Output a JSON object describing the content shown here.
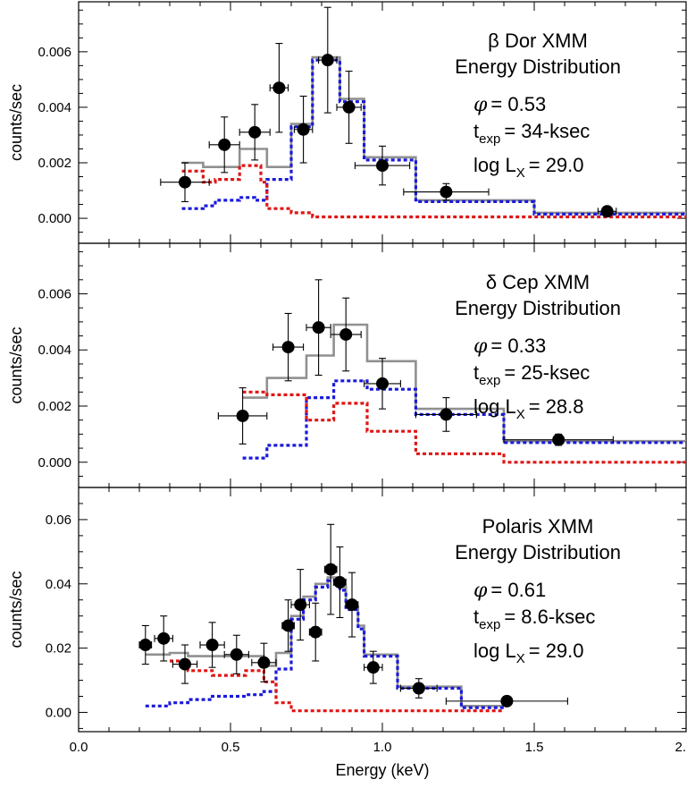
{
  "colors": {
    "total": "#909090",
    "hot": "#1a1adb",
    "cool": "#e01616",
    "data": "#000000"
  },
  "chart_data": [
    {
      "type": "line",
      "panel": "top",
      "xlim": [
        0,
        2.0
      ],
      "ylim": [
        -0.0009,
        0.0078
      ],
      "ylabel": "counts/sec",
      "yticks": [
        "0.000",
        "0.002",
        "0.004",
        "0.006"
      ],
      "ytick_values": [
        0,
        0.002,
        0.004,
        0.006
      ],
      "annotation": {
        "title1": "β Dor XMM",
        "title2": "Energy Distribution",
        "phi_symbol": "φ",
        "phi_value": "= 0.53",
        "t": "t",
        "t_sub": "exp",
        "t_value": "= 34-ksec",
        "l": "log L",
        "l_sub": "X",
        "l_value": "= 29.0"
      },
      "points": [
        {
          "x": 0.35,
          "y": 0.0013,
          "xerr": 0.08,
          "yerr": 0.0007
        },
        {
          "x": 0.48,
          "y": 0.00265,
          "xerr": 0.05,
          "yerr": 0.001
        },
        {
          "x": 0.58,
          "y": 0.0031,
          "xerr": 0.05,
          "yerr": 0.001
        },
        {
          "x": 0.66,
          "y": 0.0047,
          "xerr": 0.03,
          "yerr": 0.0016
        },
        {
          "x": 0.74,
          "y": 0.0032,
          "xerr": 0.03,
          "yerr": 0.0012
        },
        {
          "x": 0.82,
          "y": 0.0057,
          "xerr": 0.03,
          "yerr": 0.0019
        },
        {
          "x": 0.89,
          "y": 0.004,
          "xerr": 0.04,
          "yerr": 0.0013
        },
        {
          "x": 1.0,
          "y": 0.0019,
          "xerr": 0.09,
          "yerr": 0.0007
        },
        {
          "x": 1.21,
          "y": 0.00095,
          "xerr": 0.14,
          "yerr": 0.0003
        },
        {
          "x": 1.74,
          "y": 0.00025,
          "xerr": 0.03,
          "yerr": 5e-05
        }
      ],
      "series": [
        {
          "name": "",
          "role": "total",
          "x": [
            0.34,
            0.41,
            0.41,
            0.53,
            0.53,
            0.62,
            0.62,
            0.7,
            0.7,
            0.77,
            0.77,
            0.86,
            0.86,
            0.94,
            0.94,
            1.11,
            1.11,
            1.5,
            1.5,
            2.0
          ],
          "y": [
            0.002,
            0.002,
            0.00185,
            0.00185,
            0.0025,
            0.0025,
            0.00185,
            0.00185,
            0.0034,
            0.0034,
            0.0058,
            0.0058,
            0.0043,
            0.0043,
            0.0022,
            0.0022,
            0.00065,
            0.00065,
            0.0002,
            0.0002
          ]
        },
        {
          "name": "",
          "role": "hot",
          "x": [
            0.34,
            0.41,
            0.41,
            0.45,
            0.45,
            0.53,
            0.53,
            0.58,
            0.58,
            0.62,
            0.62,
            0.7,
            0.7,
            0.77,
            0.77,
            0.86,
            0.86,
            0.94,
            0.94,
            1.11,
            1.11,
            1.5,
            1.5,
            2.0
          ],
          "y": [
            0.00035,
            0.00035,
            0.00045,
            0.00045,
            0.00065,
            0.00065,
            0.00075,
            0.00075,
            0.00065,
            0.00065,
            0.0014,
            0.0014,
            0.0033,
            0.0033,
            0.0057,
            0.0057,
            0.0042,
            0.0042,
            0.0021,
            0.0021,
            0.0006,
            0.0006,
            0.00015,
            0.00015
          ]
        },
        {
          "name": "",
          "role": "cool",
          "x": [
            0.34,
            0.41,
            0.41,
            0.45,
            0.45,
            0.53,
            0.53,
            0.6,
            0.6,
            0.62,
            0.62,
            0.7,
            0.7,
            0.77,
            0.77,
            2.0
          ],
          "y": [
            0.0017,
            0.0017,
            0.0013,
            0.0013,
            0.0014,
            0.0014,
            0.0019,
            0.0019,
            0.0013,
            0.0013,
            0.00035,
            0.00035,
            0.0002,
            0.0002,
            5e-05,
            5e-05
          ]
        }
      ]
    },
    {
      "type": "line",
      "panel": "middle",
      "xlim": [
        0,
        2.0
      ],
      "ylim": [
        -0.0009,
        0.0078
      ],
      "ylabel": "counts/sec",
      "yticks": [
        "0.000",
        "0.002",
        "0.004",
        "0.006"
      ],
      "ytick_values": [
        0,
        0.002,
        0.004,
        0.006
      ],
      "annotation": {
        "title1": "δ Cep XMM",
        "title2": "Energy Distribution",
        "phi_symbol": "φ",
        "phi_value": "= 0.33",
        "t": "t",
        "t_sub": "exp",
        "t_value": "= 25-ksec",
        "l": "log L",
        "l_sub": "X",
        "l_value": "= 28.8"
      },
      "points": [
        {
          "x": 0.54,
          "y": 0.00165,
          "xerr": 0.08,
          "yerr": 0.001
        },
        {
          "x": 0.69,
          "y": 0.0041,
          "xerr": 0.05,
          "yerr": 0.0012
        },
        {
          "x": 0.79,
          "y": 0.0048,
          "xerr": 0.04,
          "yerr": 0.0017
        },
        {
          "x": 0.88,
          "y": 0.00455,
          "xerr": 0.05,
          "yerr": 0.0013
        },
        {
          "x": 1.0,
          "y": 0.0028,
          "xerr": 0.06,
          "yerr": 0.0009
        },
        {
          "x": 1.21,
          "y": 0.0017,
          "xerr": 0.1,
          "yerr": 0.0006
        },
        {
          "x": 1.58,
          "y": 0.0008,
          "xerr": 0.18,
          "yerr": 0.0002
        }
      ],
      "series": [
        {
          "name": "",
          "role": "total",
          "x": [
            0.54,
            0.62,
            0.62,
            0.75,
            0.75,
            0.84,
            0.84,
            0.95,
            0.95,
            1.11,
            1.11,
            1.4,
            1.4,
            2.0
          ],
          "y": [
            0.0023,
            0.0023,
            0.003,
            0.003,
            0.0038,
            0.0038,
            0.0049,
            0.0049,
            0.0036,
            0.0036,
            0.0019,
            0.0019,
            0.00075,
            0.00075
          ]
        },
        {
          "name": "",
          "role": "hot",
          "x": [
            0.54,
            0.62,
            0.62,
            0.75,
            0.75,
            0.84,
            0.84,
            0.95,
            0.95,
            1.11,
            1.11,
            1.4,
            1.4,
            2.0
          ],
          "y": [
            0.00015,
            0.00015,
            0.0006,
            0.0006,
            0.0023,
            0.0023,
            0.0029,
            0.0029,
            0.0026,
            0.0026,
            0.0017,
            0.0017,
            0.0007,
            0.0007
          ]
        },
        {
          "name": "",
          "role": "cool",
          "x": [
            0.54,
            0.62,
            0.62,
            0.75,
            0.75,
            0.84,
            0.84,
            0.95,
            0.95,
            1.11,
            1.11,
            1.4,
            1.4,
            2.0
          ],
          "y": [
            0.0025,
            0.0025,
            0.0024,
            0.0024,
            0.0015,
            0.0015,
            0.0021,
            0.0021,
            0.0011,
            0.0011,
            0.0003,
            0.0003,
            0.0,
            0.0
          ]
        }
      ]
    },
    {
      "type": "line",
      "panel": "bottom",
      "xlim": [
        0,
        2.0
      ],
      "ylim": [
        -0.006,
        0.07
      ],
      "xlabel": "Energy (keV)",
      "xticks": [
        "0.0",
        "0.5",
        "1.0",
        "1.5",
        "2."
      ],
      "xtick_values": [
        0,
        0.5,
        1.0,
        1.5,
        2.0
      ],
      "ylabel": "counts/sec",
      "yticks": [
        "0.00",
        "0.02",
        "0.04",
        "0.06"
      ],
      "ytick_values": [
        0,
        0.02,
        0.04,
        0.06
      ],
      "annotation": {
        "title1": "Polaris XMM",
        "title2": "Energy Distribution",
        "phi_symbol": "φ",
        "phi_value": "= 0.61",
        "t": "t",
        "t_sub": "exp",
        "t_value": "= 8.6-ksec",
        "l": "log L",
        "l_sub": "X",
        "l_value": "= 29.0"
      },
      "points": [
        {
          "x": 0.22,
          "y": 0.021,
          "xerr": 0.02,
          "yerr": 0.006
        },
        {
          "x": 0.28,
          "y": 0.023,
          "xerr": 0.03,
          "yerr": 0.007
        },
        {
          "x": 0.35,
          "y": 0.015,
          "xerr": 0.04,
          "yerr": 0.006
        },
        {
          "x": 0.44,
          "y": 0.021,
          "xerr": 0.04,
          "yerr": 0.007
        },
        {
          "x": 0.52,
          "y": 0.018,
          "xerr": 0.04,
          "yerr": 0.006
        },
        {
          "x": 0.61,
          "y": 0.0155,
          "xerr": 0.04,
          "yerr": 0.006
        },
        {
          "x": 0.69,
          "y": 0.027,
          "xerr": 0.02,
          "yerr": 0.008
        },
        {
          "x": 0.73,
          "y": 0.0335,
          "xerr": 0.03,
          "yerr": 0.011
        },
        {
          "x": 0.78,
          "y": 0.025,
          "xerr": 0.02,
          "yerr": 0.009
        },
        {
          "x": 0.83,
          "y": 0.0445,
          "xerr": 0.02,
          "yerr": 0.014
        },
        {
          "x": 0.86,
          "y": 0.0405,
          "xerr": 0.02,
          "yerr": 0.011
        },
        {
          "x": 0.9,
          "y": 0.0335,
          "xerr": 0.02,
          "yerr": 0.01
        },
        {
          "x": 0.97,
          "y": 0.014,
          "xerr": 0.03,
          "yerr": 0.005
        },
        {
          "x": 1.12,
          "y": 0.0075,
          "xerr": 0.06,
          "yerr": 0.003
        },
        {
          "x": 1.41,
          "y": 0.0035,
          "xerr": 0.2,
          "yerr": 0.001
        }
      ],
      "series": [
        {
          "name": "",
          "role": "total",
          "x": [
            0.22,
            0.3,
            0.3,
            0.36,
            0.36,
            0.44,
            0.44,
            0.55,
            0.55,
            0.61,
            0.61,
            0.65,
            0.65,
            0.7,
            0.7,
            0.74,
            0.74,
            0.78,
            0.78,
            0.82,
            0.82,
            0.86,
            0.86,
            0.88,
            0.88,
            0.92,
            0.92,
            0.94,
            0.94,
            1.05,
            1.05,
            1.26,
            1.26,
            1.4
          ],
          "y": [
            0.018,
            0.018,
            0.0185,
            0.0185,
            0.0175,
            0.0175,
            0.0175,
            0.0175,
            0.0175,
            0.0175,
            0.0145,
            0.0145,
            0.0185,
            0.0185,
            0.03,
            0.03,
            0.036,
            0.036,
            0.04,
            0.04,
            0.042,
            0.042,
            0.039,
            0.039,
            0.033,
            0.033,
            0.027,
            0.027,
            0.018,
            0.018,
            0.008,
            0.008,
            0.002,
            0.002
          ]
        },
        {
          "name": "",
          "role": "hot",
          "x": [
            0.22,
            0.3,
            0.3,
            0.36,
            0.36,
            0.44,
            0.44,
            0.55,
            0.55,
            0.61,
            0.61,
            0.65,
            0.65,
            0.7,
            0.7,
            0.74,
            0.74,
            0.78,
            0.78,
            0.82,
            0.82,
            0.86,
            0.86,
            0.88,
            0.88,
            0.92,
            0.92,
            0.94,
            0.94,
            1.05,
            1.05,
            1.26,
            1.26,
            1.4
          ],
          "y": [
            0.002,
            0.002,
            0.003,
            0.003,
            0.004,
            0.004,
            0.005,
            0.005,
            0.0055,
            0.0055,
            0.0065,
            0.0065,
            0.0135,
            0.0135,
            0.029,
            0.029,
            0.035,
            0.035,
            0.039,
            0.039,
            0.041,
            0.041,
            0.038,
            0.038,
            0.032,
            0.032,
            0.026,
            0.026,
            0.0175,
            0.0175,
            0.0075,
            0.0075,
            0.0015,
            0.0015
          ]
        },
        {
          "name": "",
          "role": "cool",
          "x": [
            0.3,
            0.36,
            0.36,
            0.44,
            0.44,
            0.55,
            0.55,
            0.61,
            0.61,
            0.65,
            0.65,
            0.7,
            0.7,
            1.4
          ],
          "y": [
            0.016,
            0.016,
            0.013,
            0.013,
            0.0115,
            0.0115,
            0.013,
            0.013,
            0.0095,
            0.0095,
            0.003,
            0.003,
            0.0005,
            0.0005
          ]
        }
      ]
    }
  ]
}
